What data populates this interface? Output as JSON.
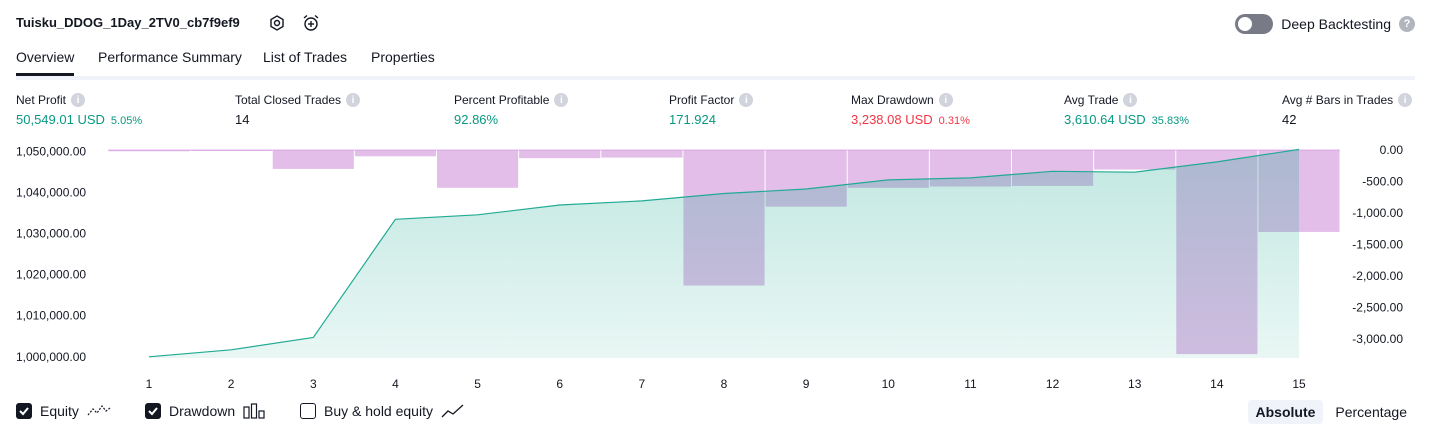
{
  "header": {
    "title": "Tuisku_DDOG_1Day_2TV0_cb7f9ef9",
    "deep_backtesting_label": "Deep Backtesting",
    "deep_backtesting_on": false
  },
  "tabs": [
    {
      "label": "Overview",
      "active": true
    },
    {
      "label": "Performance Summary",
      "active": false
    },
    {
      "label": "List of Trades",
      "active": false
    },
    {
      "label": "Properties",
      "active": false
    }
  ],
  "metrics": {
    "net_profit": {
      "label": "Net Profit",
      "value": "50,549.01 USD",
      "pct": "5.05%"
    },
    "total_closed_trades": {
      "label": "Total Closed Trades",
      "value": "14"
    },
    "percent_profitable": {
      "label": "Percent Profitable",
      "value": "92.86%"
    },
    "profit_factor": {
      "label": "Profit Factor",
      "value": "171.924"
    },
    "max_drawdown": {
      "label": "Max Drawdown",
      "value": "3,238.08 USD",
      "pct": "0.31%"
    },
    "avg_trade": {
      "label": "Avg Trade",
      "value": "3,610.64 USD",
      "pct": "35.83%"
    },
    "avg_bars": {
      "label": "Avg # Bars in Trades",
      "value": "42"
    }
  },
  "chart_data": {
    "type": "area",
    "x": [
      1,
      2,
      3,
      4,
      5,
      6,
      7,
      8,
      9,
      10,
      11,
      12,
      13,
      14,
      15
    ],
    "x_tick_labels": [
      "1",
      "2",
      "3",
      "4",
      "5",
      "6",
      "7",
      "8",
      "9",
      "10",
      "11",
      "12",
      "13",
      "14",
      "15"
    ],
    "y_left_tick_labels": [
      "1,050,000.00",
      "1,040,000.00",
      "1,030,000.00",
      "1,020,000.00",
      "1,010,000.00",
      "1,000,000.00"
    ],
    "y_left_ticks": [
      1050000,
      1040000,
      1030000,
      1020000,
      1010000,
      1000000
    ],
    "y_right_tick_labels": [
      "0.00",
      "-500.00",
      "-1,000.00",
      "-1,500.00",
      "-2,000.00",
      "-2,500.00",
      "-3,000.00"
    ],
    "y_right_ticks": [
      0,
      -500,
      -1000,
      -1500,
      -2000,
      -2500,
      -3000
    ],
    "ylim_left": [
      999700,
      1050400
    ],
    "ylim_right": [
      -3300,
      0
    ],
    "series": [
      {
        "name": "Equity",
        "axis": "left",
        "color": "#22ab94",
        "values": [
          1000000,
          1001700,
          1004700,
          1033500,
          1034600,
          1037000,
          1038000,
          1039800,
          1040900,
          1043100,
          1043600,
          1045200,
          1045000,
          1047500,
          1050549
        ]
      },
      {
        "name": "Drawdown",
        "axis": "right",
        "color": "#ce93d8",
        "values": [
          -20,
          -10,
          -300,
          -100,
          -600,
          -130,
          -120,
          -2150,
          -900,
          -600,
          -580,
          -570,
          -310,
          -3238,
          -1300
        ]
      }
    ],
    "legend": "bottom-left"
  },
  "legend": {
    "equity": {
      "label": "Equity",
      "checked": true
    },
    "drawdown": {
      "label": "Drawdown",
      "checked": true
    },
    "buy_hold": {
      "label": "Buy & hold equity",
      "checked": false
    }
  },
  "scale": {
    "absolute": "Absolute",
    "percentage": "Percentage",
    "selected": "absolute"
  }
}
